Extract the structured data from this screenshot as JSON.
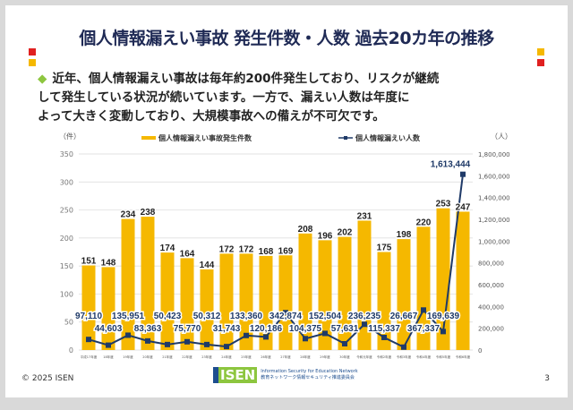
{
  "title": "個人情報漏えい事故 発生件数・人数 過去20カ年の推移",
  "bullet": "近年、個人情報漏えい事故は毎年約200件発生しており、リスクが継続\nして発生している状況が続いています。一方で、漏えい人数は年度に\nよって大きく変動しており、大規模事故への備えが不可欠です。",
  "colors": {
    "bar": "#f5b800",
    "line": "#1f3a68",
    "title": "#1f2a55",
    "accent_red": "#e02020",
    "accent_yellow": "#f5b800",
    "bullet": "#8dc63f"
  },
  "footer": {
    "copyright": "© 2025 ISEN",
    "page": "3",
    "logo": "ISEN",
    "logo_en": "Information Security for Education Network",
    "logo_jp": "教育ネットワーク情報セキュリティ推進委員会"
  },
  "chart_data": {
    "type": "bar+line",
    "categories": [
      "平成17年度",
      "18年度",
      "19年度",
      "20年度",
      "21年度",
      "22年度",
      "23年度",
      "24年度",
      "25年度",
      "26年度",
      "27年度",
      "28年度",
      "29年度",
      "30年度",
      "令和元年度",
      "令和2年度",
      "令和3年度",
      "令和4年度",
      "令和5年度",
      "令和6年度"
    ],
    "left_axis": {
      "unit_label": "（件）",
      "range": [
        0,
        350
      ],
      "ticks": [
        0,
        50,
        100,
        150,
        200,
        250,
        300,
        350
      ]
    },
    "right_axis": {
      "unit_label": "（人）",
      "range": [
        0,
        1800000
      ],
      "ticks": [
        "0",
        "200,000",
        "400,000",
        "600,000",
        "800,000",
        "1,000,000",
        "1,200,000",
        "1,400,000",
        "1,600,000",
        "1,800,000"
      ]
    },
    "grid": true,
    "legend_position": "top",
    "series": [
      {
        "name": "個人情報漏えい事故発生件数",
        "type": "bar",
        "axis": "left",
        "values": [
          151,
          148,
          234,
          238,
          174,
          164,
          144,
          172,
          172,
          168,
          169,
          208,
          196,
          202,
          231,
          175,
          198,
          220,
          253,
          247
        ]
      },
      {
        "name": "個人情報漏えい人数",
        "type": "line",
        "axis": "right",
        "values": [
          97110,
          44603,
          135951,
          83363,
          50423,
          75770,
          50312,
          31743,
          133360,
          120186,
          342874,
          104375,
          152504,
          57631,
          236235,
          115337,
          26667,
          367337,
          169639,
          1613444
        ]
      }
    ]
  }
}
